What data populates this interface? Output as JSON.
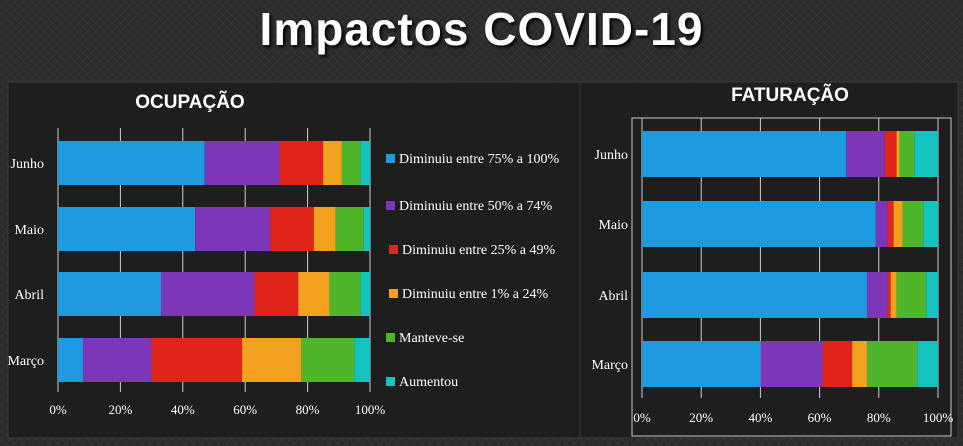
{
  "page": {
    "title": "Impactos COVID-19"
  },
  "legend": [
    {
      "label": "Diminuiu entre 75% a 100%",
      "color": "#1e9be0"
    },
    {
      "label": "Diminuiu entre 50% a 74%",
      "color": "#7e36b8"
    },
    {
      "label": "Diminuiu entre 25% a 49%",
      "color": "#e0261b"
    },
    {
      "label": "Diminuiu entre 1% a 24%",
      "color": "#f2a11f"
    },
    {
      "label": "Manteve-se",
      "color": "#4fb52a"
    },
    {
      "label": "Aumentou",
      "color": "#14c2c0"
    }
  ],
  "chart_data": [
    {
      "type": "bar",
      "orientation": "horizontal",
      "stacked": "percent",
      "title": "OCUPAÇÃO",
      "categories": [
        "Junho",
        "Maio",
        "Abril",
        "Março"
      ],
      "x_ticks": [
        "0%",
        "20%",
        "40%",
        "60%",
        "80%",
        "100%"
      ],
      "xlim": [
        0,
        100
      ],
      "grid": true,
      "legend_position": "right",
      "series": [
        {
          "name": "Diminuiu entre 75% a 100%",
          "values": [
            47,
            44,
            33,
            8
          ]
        },
        {
          "name": "Diminuiu entre 50% a 74%",
          "values": [
            24,
            24,
            30,
            22
          ]
        },
        {
          "name": "Diminuiu entre 25% a 49%",
          "values": [
            14,
            14,
            14,
            29
          ]
        },
        {
          "name": "Diminuiu entre 1% a 24%",
          "values": [
            6,
            7,
            10,
            19
          ]
        },
        {
          "name": "Manteve-se",
          "values": [
            6,
            9,
            10,
            17
          ]
        },
        {
          "name": "Aumentou",
          "values": [
            3,
            2,
            3,
            5
          ]
        }
      ]
    },
    {
      "type": "bar",
      "orientation": "horizontal",
      "stacked": "percent",
      "title": "FATURAÇÃO",
      "categories": [
        "Junho",
        "Maio",
        "Abril",
        "Março"
      ],
      "x_ticks": [
        "0%",
        "20%",
        "40%",
        "60%",
        "80%",
        "100%"
      ],
      "xlim": [
        0,
        100
      ],
      "grid": true,
      "series": [
        {
          "name": "Diminuiu entre 75% a 100%",
          "values": [
            69,
            79,
            76,
            40
          ]
        },
        {
          "name": "Diminuiu entre 50% a 74%",
          "values": [
            13,
            4,
            7,
            21
          ]
        },
        {
          "name": "Diminuiu entre 25% a 49%",
          "values": [
            4,
            2,
            1,
            10
          ]
        },
        {
          "name": "Diminuiu entre 1% a 24%",
          "values": [
            1,
            3,
            2,
            5
          ]
        },
        {
          "name": "Manteve-se",
          "values": [
            5,
            7,
            10,
            17
          ]
        },
        {
          "name": "Aumentou",
          "values": [
            8,
            5,
            4,
            7
          ]
        }
      ]
    }
  ]
}
